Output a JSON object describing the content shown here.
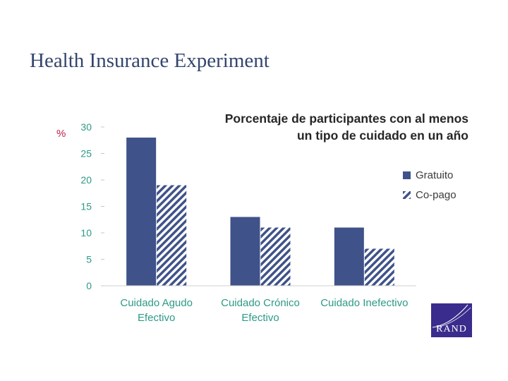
{
  "slide": {
    "title": "Health Insurance Experiment"
  },
  "logo": {
    "text": "RAND"
  },
  "chart_data": {
    "type": "bar",
    "title_lines": [
      "Porcentaje de participantes con al menos",
      "un tipo de cuidado en un año"
    ],
    "unit_label": "%",
    "categories": [
      [
        "Cuidado Agudo",
        "Efectivo"
      ],
      [
        "Cuidado Crónico",
        "Efectivo"
      ],
      [
        "Cuidado Inefectivo"
      ]
    ],
    "series": [
      {
        "name": "Gratuito",
        "values": [
          28,
          13,
          11
        ],
        "color": "#3f5289",
        "pattern": "solid"
      },
      {
        "name": "Co-pago",
        "values": [
          19,
          11,
          7
        ],
        "color": "#3f5289",
        "pattern": "hatch"
      }
    ],
    "ylim": [
      0,
      30
    ],
    "yticks": [
      0,
      5,
      10,
      15,
      20,
      25,
      30
    ],
    "legend_position": "right",
    "grid": false
  }
}
